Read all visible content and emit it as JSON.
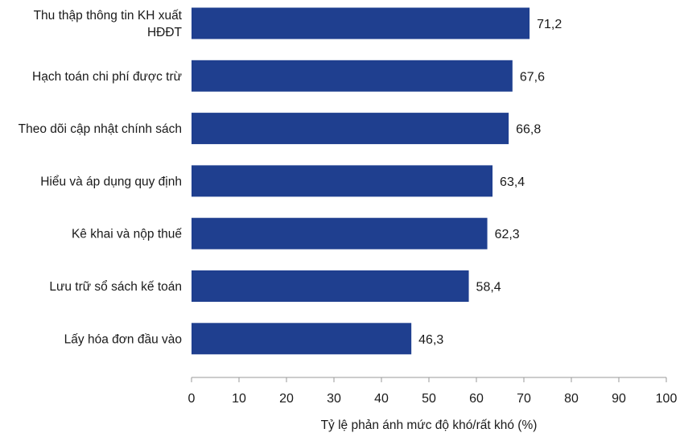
{
  "chart_data": {
    "type": "bar",
    "orientation": "horizontal",
    "categories": [
      [
        "Thu thập thông tin KH xuất",
        "HĐĐT"
      ],
      [
        "Hạch toán chi phí được trừ"
      ],
      [
        "Theo dõi cập nhật chính sách"
      ],
      [
        "Hiểu và áp dụng quy định"
      ],
      [
        "Kê khai và nộp thuế"
      ],
      [
        "Lưu trữ sổ sách kế toán"
      ],
      [
        "Lấy hóa đơn đầu vào"
      ]
    ],
    "values": [
      71.2,
      67.6,
      66.8,
      63.4,
      62.3,
      58.4,
      46.3
    ],
    "value_labels": [
      "71,2",
      "67,6",
      "66,8",
      "63,4",
      "62,3",
      "58,4",
      "46,3"
    ],
    "xticks": [
      0,
      10,
      20,
      30,
      40,
      50,
      60,
      70,
      80,
      90,
      100
    ],
    "xlim": [
      0,
      100
    ],
    "xlabel": "Tỷ lệ phản ánh mức độ khó/rất khó (%)",
    "title": "",
    "bar_color": "#1f3f8f",
    "axis_color": "#9a9a9a",
    "grid": false
  }
}
